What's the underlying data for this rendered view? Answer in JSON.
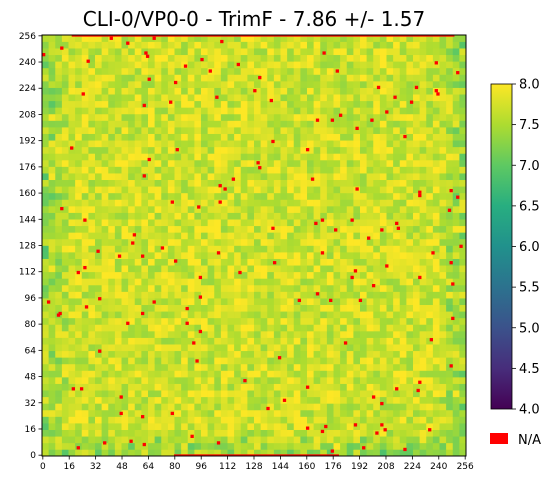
{
  "chart_data": {
    "type": "heatmap",
    "title": "CLI-0/VP0-0  -  TrimF  - 7.86 +/- 1.57",
    "xlabel": "",
    "ylabel": "",
    "x_range": [
      0,
      257
    ],
    "y_range": [
      0,
      257
    ],
    "x_ticks": [
      "0",
      "16",
      "32",
      "48",
      "64",
      "80",
      "96",
      "112",
      "128",
      "144",
      "160",
      "176",
      "192",
      "208",
      "224",
      "240",
      "256"
    ],
    "y_ticks": [
      "0",
      "16",
      "32",
      "48",
      "64",
      "80",
      "96",
      "112",
      "128",
      "144",
      "160",
      "176",
      "192",
      "208",
      "224",
      "240",
      "256"
    ],
    "colorbar": {
      "colormap": "viridis",
      "range": [
        4.0,
        8.0
      ],
      "ticks": [
        "4.0",
        "4.5",
        "5.0",
        "5.5",
        "6.0",
        "6.5",
        "7.0",
        "7.5",
        "8.0"
      ]
    },
    "missing": {
      "label": "N/A",
      "color": "#ff0000"
    },
    "mean": 7.86,
    "std": 1.57,
    "grid": false
  }
}
